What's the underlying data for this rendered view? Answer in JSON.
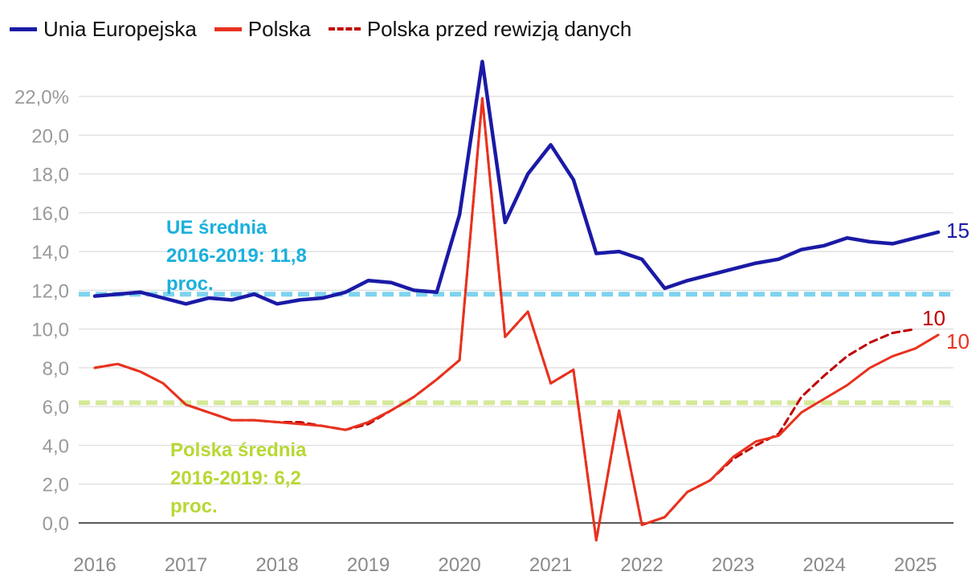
{
  "legend": [
    {
      "label": "Unia Europejska",
      "color": "#1a1aa6",
      "style": "solid"
    },
    {
      "label": "Polska",
      "color": "#e8321e",
      "style": "solid"
    },
    {
      "label": "Polska przed rewizją danych",
      "color": "#c00000",
      "style": "dashed"
    }
  ],
  "notes": {
    "eu_avg": [
      "UE średnia",
      "2016-2019: 11,8",
      "proc."
    ],
    "pl_avg": [
      "Polska średnia",
      "2016-2019: 6,2",
      "proc."
    ]
  },
  "chart_data": {
    "type": "line",
    "ylim": [
      -1,
      24
    ],
    "yticks": [
      0,
      2,
      4,
      6,
      8,
      10,
      12,
      14,
      16,
      18,
      20,
      22
    ],
    "ytick_labels": [
      "0,0",
      "2,0",
      "4,0",
      "6,0",
      "8,0",
      "10,0",
      "12,0",
      "14,0",
      "16,0",
      "18,0",
      "20,0",
      "22,0%"
    ],
    "xlim": [
      2016,
      2025.25
    ],
    "x_tick_labels": [
      "2016",
      "2017",
      "2018",
      "2019",
      "2020",
      "2021",
      "2022",
      "2023",
      "2024",
      "2025"
    ],
    "x": [
      2016.0,
      2016.25,
      2016.5,
      2016.75,
      2017.0,
      2017.25,
      2017.5,
      2017.75,
      2018.0,
      2018.25,
      2018.5,
      2018.75,
      2019.0,
      2019.25,
      2019.5,
      2019.75,
      2020.0,
      2020.25,
      2020.5,
      2020.75,
      2021.0,
      2021.25,
      2021.5,
      2021.75,
      2022.0,
      2022.25,
      2022.5,
      2022.75,
      2023.0,
      2023.25,
      2023.5,
      2023.75,
      2024.0,
      2024.25,
      2024.5,
      2024.75,
      2025.0,
      2025.25
    ],
    "series": [
      {
        "name": "Unia Europejska",
        "color": "#1a1aa6",
        "style": "solid",
        "end_label": "15",
        "values": [
          11.7,
          11.8,
          11.9,
          11.6,
          11.3,
          11.6,
          11.5,
          11.8,
          11.3,
          11.5,
          11.6,
          11.9,
          12.5,
          12.4,
          12.0,
          11.9,
          15.9,
          23.8,
          15.5,
          18.0,
          19.5,
          17.7,
          13.9,
          14.0,
          13.6,
          12.1,
          12.5,
          12.8,
          13.1,
          13.4,
          13.6,
          14.1,
          14.3,
          14.7,
          14.5,
          14.4,
          14.7,
          15.0
        ]
      },
      {
        "name": "Polska",
        "color": "#e8321e",
        "style": "solid",
        "end_label": "10",
        "values": [
          8.0,
          8.2,
          7.8,
          7.2,
          6.1,
          5.7,
          5.3,
          5.3,
          5.2,
          5.1,
          5.0,
          4.8,
          5.2,
          5.8,
          6.5,
          7.4,
          8.4,
          21.9,
          9.6,
          10.9,
          7.2,
          7.9,
          -0.9,
          5.8,
          -0.1,
          0.3,
          1.6,
          2.2,
          3.4,
          4.2,
          4.5,
          5.7,
          6.4,
          7.1,
          8.0,
          8.6,
          9.0,
          9.7
        ]
      },
      {
        "name": "Polska przed rewizją danych",
        "color": "#c00000",
        "style": "dashed",
        "end_label": "10",
        "values": [
          8.0,
          8.2,
          7.8,
          7.2,
          6.1,
          5.7,
          5.3,
          5.3,
          5.2,
          5.2,
          5.0,
          4.8,
          5.1,
          5.8,
          6.5,
          7.4,
          8.4,
          21.9,
          9.6,
          10.9,
          7.2,
          7.9,
          -0.9,
          5.8,
          -0.1,
          0.3,
          1.6,
          2.2,
          3.3,
          4.0,
          4.6,
          6.5,
          7.6,
          8.6,
          9.3,
          9.8,
          10.0,
          null
        ]
      }
    ],
    "reference_lines": [
      {
        "name": "UE średnia 2016-2019",
        "value": 11.8,
        "color": "#7fd3ee"
      },
      {
        "name": "Polska średnia 2016-2019",
        "value": 6.2,
        "color": "#d5ea9a"
      }
    ]
  }
}
